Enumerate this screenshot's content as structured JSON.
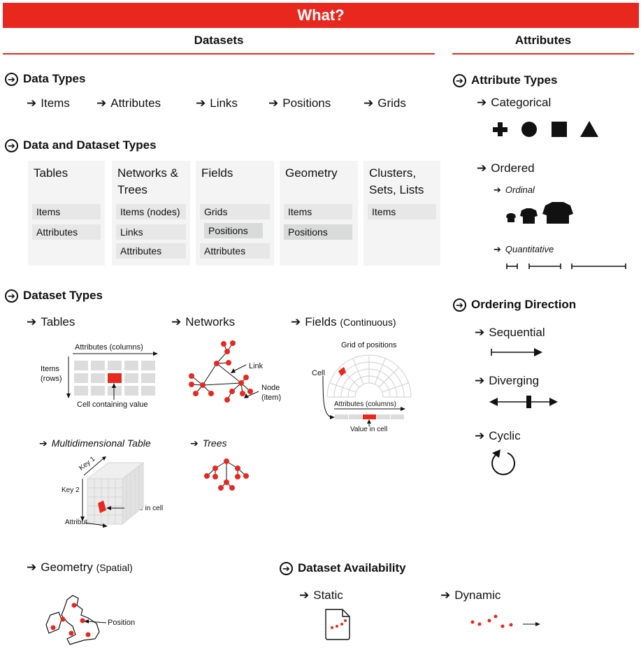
{
  "banner": "What?",
  "columns": {
    "datasets": "Datasets",
    "attributes": "Attributes"
  },
  "data_types": {
    "title": "Data Types",
    "items": [
      "Items",
      "Attributes",
      "Links",
      "Positions",
      "Grids"
    ]
  },
  "data_and_dataset_types": {
    "title": "Data and Dataset Types",
    "cards": [
      {
        "title": "Tables",
        "cells": [
          "Items",
          "Attributes"
        ]
      },
      {
        "title": "Networks & Trees",
        "cells": [
          "Items (nodes)",
          "Links",
          "Attributes"
        ]
      },
      {
        "title": "Fields",
        "cells": [
          "Grids",
          "Positions",
          "Attributes"
        ]
      },
      {
        "title": "Geometry",
        "cells": [
          "Items",
          "Positions"
        ]
      },
      {
        "title": "Clusters, Sets, Lists",
        "cells": [
          "Items"
        ]
      }
    ]
  },
  "dataset_types": {
    "title": "Dataset Types",
    "tables": {
      "label": "Tables",
      "attributes_label": "Attributes (columns)",
      "items_label": "Items (rows)",
      "cell_label": "Cell containing value"
    },
    "networks": {
      "label": "Networks",
      "link_label": "Link",
      "node_label": "Node (item)"
    },
    "fields": {
      "label": "Fields",
      "qualifier": "(Continuous)",
      "grid_label": "Grid of positions",
      "cell_label": "Cell",
      "attributes_label": "Attributes (columns)",
      "value_label": "Value in cell"
    },
    "multidim": {
      "label": "Multidimensional Table",
      "key1": "Key 1",
      "key2": "Key 2",
      "attributes": "Attributes",
      "value_label": "Value in cell"
    },
    "trees": {
      "label": "Trees"
    },
    "geometry": {
      "label": "Geometry",
      "qualifier": "(Spatial)",
      "position_label": "Position"
    }
  },
  "dataset_availability": {
    "title": "Dataset Availability",
    "static": "Static",
    "dynamic": "Dynamic"
  },
  "attribute_types": {
    "title": "Attribute Types",
    "categorical": "Categorical",
    "ordered": "Ordered",
    "ordinal": "Ordinal",
    "quantitative": "Quantitative"
  },
  "ordering_direction": {
    "title": "Ordering Direction",
    "sequential": "Sequential",
    "diverging": "Diverging",
    "cyclic": "Cyclic"
  },
  "colors": {
    "accent": "#e8281f",
    "card": "#f4f4f4",
    "cell": "#e7e7e7"
  }
}
